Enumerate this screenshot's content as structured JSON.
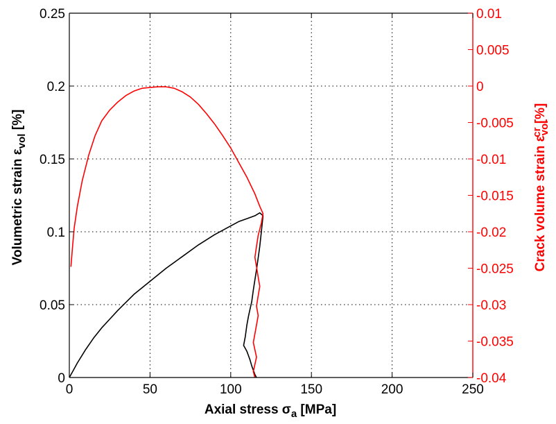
{
  "colors": {
    "left_axis": "#000000",
    "right_axis": "#ff0000",
    "grid": "#000000",
    "background": "#ffffff"
  },
  "chart_data": {
    "type": "line",
    "grid": true,
    "xlabel": {
      "base": "Axial stress σ",
      "sub": "a",
      "tail": " [MPa]"
    },
    "ylabel_left": {
      "base": "Volumetric strain ε",
      "sub": "vol",
      "tail": " [%]"
    },
    "ylabel_right": {
      "base": "Crack volume strain ε",
      "sub": "vol",
      "sup": "cr",
      "tail": " [%]"
    },
    "x_axis": {
      "range": [
        0,
        250
      ],
      "ticks": [
        0,
        50,
        100,
        150,
        200,
        250
      ],
      "tick_labels": [
        "0",
        "50",
        "100",
        "150",
        "200",
        "250"
      ]
    },
    "y_axis_left": {
      "range": [
        0,
        0.25
      ],
      "ticks": [
        0,
        0.05,
        0.1,
        0.15,
        0.2,
        0.25
      ],
      "tick_labels": [
        "0",
        "0.05",
        "0.1",
        "0.15",
        "0.2",
        "0.25"
      ]
    },
    "y_axis_right": {
      "range": [
        -0.04,
        0.01
      ],
      "ticks": [
        -0.04,
        -0.035,
        -0.03,
        -0.025,
        -0.02,
        -0.015,
        -0.01,
        -0.005,
        0,
        0.005,
        0.01
      ],
      "tick_labels": [
        "-0.04",
        "-0.035",
        "-0.03",
        "-0.025",
        "-0.02",
        "-0.015",
        "-0.01",
        "-0.005",
        "0",
        "0.005",
        "0.01"
      ]
    },
    "series": [
      {
        "axis": "left",
        "color": "#000000",
        "x": [
          0,
          2,
          5,
          10,
          15,
          20,
          25,
          30,
          40,
          50,
          60,
          70,
          80,
          90,
          100,
          105,
          110,
          115,
          118,
          120,
          119,
          118,
          117,
          116,
          115,
          114,
          113,
          112,
          111,
          110,
          109,
          108,
          109,
          110,
          111,
          112,
          113,
          114,
          115,
          116
        ],
        "y": [
          0,
          0.004,
          0.01,
          0.019,
          0.027,
          0.034,
          0.04,
          0.046,
          0.057,
          0.066,
          0.075,
          0.083,
          0.091,
          0.098,
          0.104,
          0.107,
          0.109,
          0.111,
          0.113,
          0.111,
          0.1,
          0.09,
          0.082,
          0.074,
          0.067,
          0.06,
          0.052,
          0.047,
          0.042,
          0.036,
          0.028,
          0.022,
          0.02,
          0.018,
          0.015,
          0.012,
          0.008,
          0.005,
          0.002,
          0
        ]
      },
      {
        "axis": "right",
        "color": "#ff0000",
        "x": [
          1,
          2,
          3,
          5,
          8,
          12,
          16,
          20,
          25,
          30,
          35,
          40,
          45,
          50,
          55,
          60,
          65,
          70,
          75,
          80,
          85,
          90,
          95,
          100,
          105,
          110,
          115,
          118,
          120,
          119,
          117,
          116,
          115,
          116,
          117,
          118,
          117,
          116,
          117,
          116,
          115,
          114,
          115,
          116,
          115,
          114,
          115
        ],
        "y": [
          -0.0248,
          -0.022,
          -0.0195,
          -0.0165,
          -0.013,
          -0.0095,
          -0.0068,
          -0.0048,
          -0.0033,
          -0.0022,
          -0.0013,
          -0.0007,
          -0.0003,
          -0.0002,
          -0.0001,
          -0.0001,
          -0.0003,
          -0.0008,
          -0.0015,
          -0.0025,
          -0.0038,
          -0.0052,
          -0.0068,
          -0.0085,
          -0.0105,
          -0.0125,
          -0.0148,
          -0.0165,
          -0.0175,
          -0.0188,
          -0.0205,
          -0.022,
          -0.0235,
          -0.0248,
          -0.0262,
          -0.0275,
          -0.0288,
          -0.0302,
          -0.0315,
          -0.0328,
          -0.034,
          -0.0352,
          -0.0362,
          -0.0372,
          -0.0382,
          -0.0392,
          -0.04
        ]
      }
    ]
  }
}
